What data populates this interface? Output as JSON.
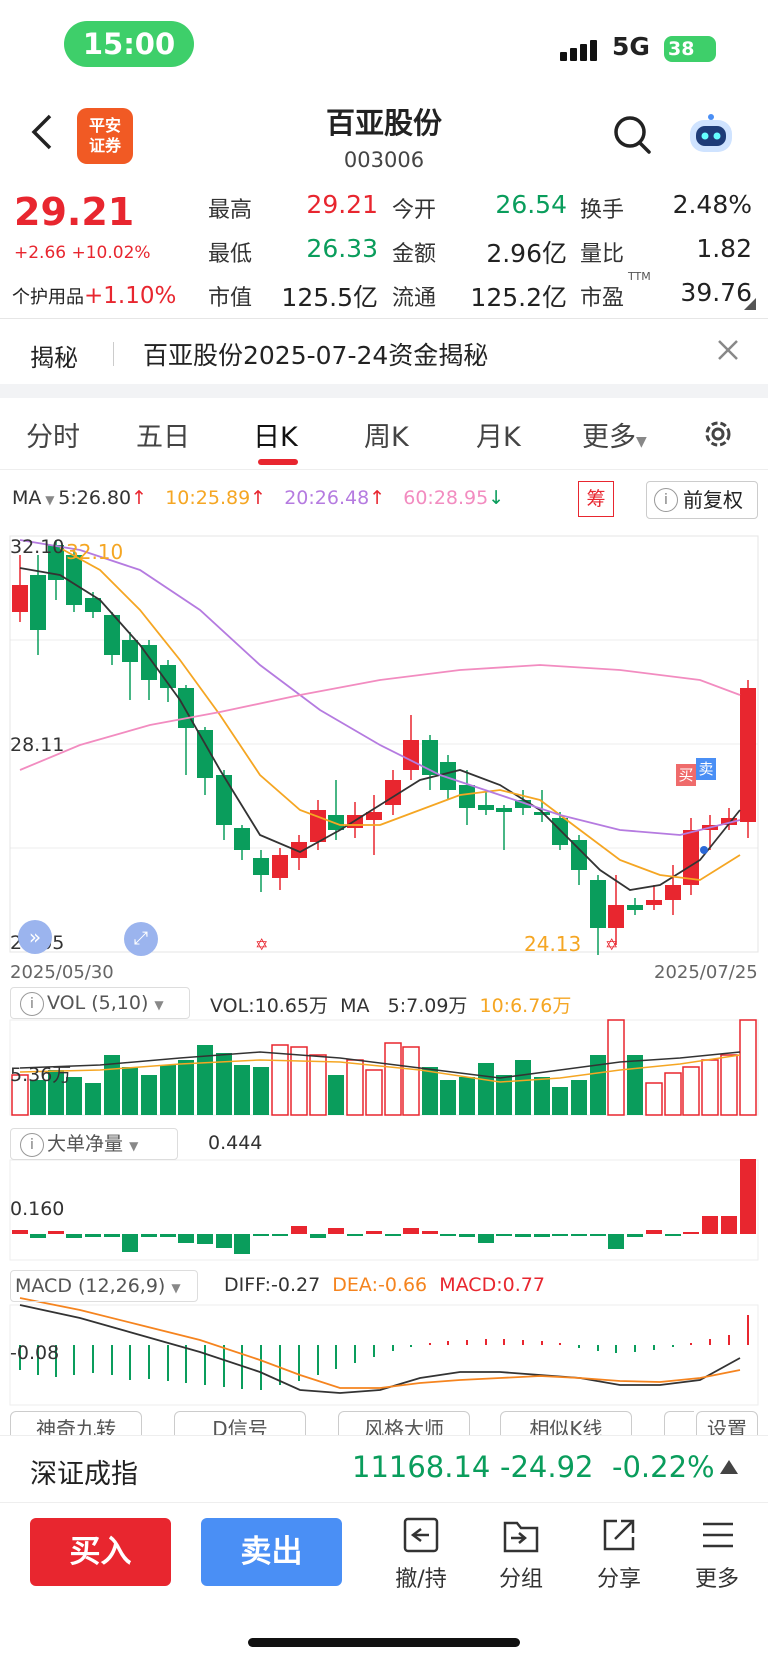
{
  "status_bar": {
    "time": "15:00",
    "network": "5G",
    "battery": "38"
  },
  "header": {
    "stock_name": "百亚股份",
    "stock_code": "003006",
    "logo_line1": "平安",
    "logo_line2": "证券"
  },
  "quote": {
    "price": "29.21",
    "change": "+2.66 +10.02%",
    "industry_label": "个护用品",
    "industry_change": "+1.10%",
    "fields": [
      {
        "label": "最高",
        "value": "29.21",
        "color": "red"
      },
      {
        "label": "今开",
        "value": "26.54",
        "color": "green"
      },
      {
        "label": "换手",
        "value": "2.48%",
        "color": "black"
      },
      {
        "label": "最低",
        "value": "26.33",
        "color": "green"
      },
      {
        "label": "金额",
        "value": "2.96亿",
        "color": "black"
      },
      {
        "label": "量比",
        "value": "1.82",
        "color": "black"
      },
      {
        "label": "市值",
        "value": "125.5亿",
        "color": "black"
      },
      {
        "label": "流通",
        "value": "125.2亿",
        "color": "black"
      },
      {
        "label": "市盈",
        "value": "39.76",
        "color": "black"
      }
    ],
    "ttm": "TTM"
  },
  "reveal": {
    "tag": "揭秘",
    "text": "百亚股份2025-07-24资金揭秘"
  },
  "tabs": [
    "分时",
    "五日",
    "日K",
    "周K",
    "月K",
    "更多"
  ],
  "ma": {
    "label": "MA",
    "ma5": "5:26.80",
    "ma10": "10:25.89",
    "ma20": "20:26.48",
    "ma60": "60:28.95",
    "chou": "筹",
    "fuquan": "前复权"
  },
  "chart": {
    "y_top": "32.10",
    "y_mid": "28.11",
    "y_low": "24.05",
    "high_mark": "32.10",
    "low_mark": "24.13",
    "date_start": "2025/05/30",
    "date_end": "2025/07/25",
    "buy_mark": "买",
    "sell_mark": "卖"
  },
  "colors": {
    "up": "#e8262f",
    "down": "#0a9d5c",
    "ma5": "#333333",
    "ma10": "#f5a623",
    "ma20": "#b57be0",
    "ma60": "#f28cc0"
  },
  "vol": {
    "label": "VOL (5,10)",
    "vol_text": "VOL:10.65万",
    "ma_label": "MA",
    "ma5": "5:7.09万",
    "ma10": "10:6.76万",
    "axis": "5.36万"
  },
  "bigorder": {
    "label": "大单净量",
    "value": "0.444",
    "axis": "0.160"
  },
  "macd": {
    "label": "MACD (12,26,9)",
    "diff": "DIFF:-0.27",
    "dea": "DEA:-0.66",
    "macd": "MACD:0.77",
    "axis": "-0.08"
  },
  "tools": [
    "神奇九转",
    "D信号",
    "风格大师",
    "相似K线",
    "设置"
  ],
  "index": {
    "name": "深证成指",
    "value": "11168.14",
    "change": "-24.92",
    "pct": "-0.22%"
  },
  "actions": {
    "buy": "买入",
    "sell": "卖出",
    "items": [
      "撤/持",
      "分组",
      "分享",
      "更多"
    ]
  }
}
